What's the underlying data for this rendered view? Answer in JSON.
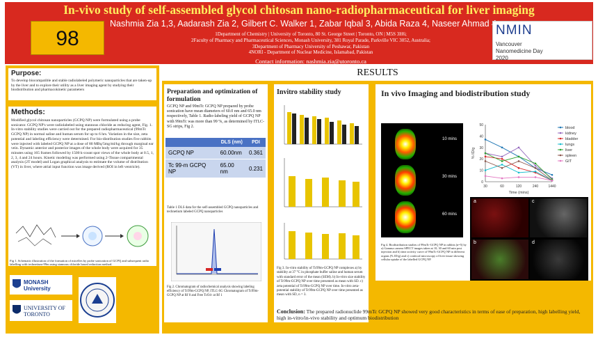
{
  "header": {
    "title": "In-vivo study of self-assembled glycol chitosan nano-radiopharmaceutical for liver imaging",
    "poster_number": "98",
    "authors": "Nashmia Zia 1,3, Aadarash Zia 2, Gilbert C. Walker 1, Zabar Iqbal 3, Abida Raza 4, Naseer Ahmad 4",
    "affiliations": [
      "1Department of Chemistry | University of Toronto, 80 St. George Street | Toronto, ON | M5S 3H6;",
      "2Faculty of Pharmacy and Pharmaceutical Sciences, Monash University, 381 Royal Parade, Parkville VIC 3052, Australia;",
      "3Department of Pharmacy University of Peshawar, Pakistan",
      "4NORI - Department of Nuclear Medicine, Islamabad, Pakistan"
    ],
    "contact": "Contact information: nashmia.zia@utoronto.ca",
    "conference_logo": "NMIN",
    "conference_name": "Vancouver Nanomedicine Day 2020"
  },
  "purpose": {
    "heading": "Purpose:",
    "text": "To develop biocompatible and stable radiolabeled polymeric nanoparticles that are taken-up by the liver and to explore their utility as a liver imaging agent by studying their biodistribution and pharmacokinetic parameters"
  },
  "methods": {
    "heading": "Methods:",
    "text": "Modified glycol chitosan nanoparticles (GCPQ NP) were formulated using a probe sonicator. GCPQ NP's were radiolabeled using stannous chloride as reducing agent, Fig. 1. In-vitro stability studies were carried out for the prepared radiopharmaceutical (99mTc GCPQ NP) in normal saline and human serum for up to 6 hrs. Variation in the size, zeta potential and labeling efficiency were determined. For bio-distribution studies five rabbits were injected with labeled GCPQ NP at a dose of 80 MBq/5mg/ml/kg through marginal ear vein. Dynamic anterior and posterior images of the whole body were acquired for 35 minutes using 165 frames followed by 1500 k-count spot views of the whole body at 0.5, 1, 2, 3, 4 and 24 hours. Kinetic modeling was performed using 2-Tissue compartmental analysis (2T model) and Logan graphical analysis to estimate the volume of distribution (VT) in liver, where atrial input function was image derived (ROI in left ventricle).",
    "fig1_caption": "Fig 1. Schematic illustration of the formation of micelles by probe sonication of GCPQ and subsequent radio labelling with technetium-99m using stannous chloride based reduction method."
  },
  "logos": {
    "monash": "MONASH University",
    "toronto": "UNIVERSITY OF TORONTO"
  },
  "results": {
    "heading": "RESULTS"
  },
  "prep": {
    "heading": "Preparation and optimization of formulation",
    "text": "GCPQ NP and 99mTc GCPQ NP prepared by probe sonication have mean diameters of 60.0 nm and 65.0 nm respectively, Table 1. Radio-labeling yield of GCPQ NP with 99mTc was more than 99 %, as determined by ITLC-SG strips, Fig 2.",
    "table": {
      "headers": [
        "",
        "DLS (nm)",
        "PDI"
      ],
      "rows": [
        [
          "GCPQ NP",
          "60.00nm",
          "0.361"
        ],
        [
          "Tc 99-m GCPQ NP",
          "65.00 nm",
          "0.231"
        ]
      ]
    },
    "table_caption": "Table 1 DLS data for the self-assembled GCPQ nanoparticles and technetium labeled GCPQ nanoparticles",
    "fig2_caption": "Fig 2. Chromatogram of radiochemical analysis showing labeling efficiency of Tc99m-GCPQ NP, ITLC-SG Chromatogram of Tc99m-GCPQ NP at Rf 0 and Free TcO4- at Rf 1"
  },
  "stability": {
    "heading": "Invitro stability study",
    "caption": "Fig 3. In-vitro stability of Tc99m-GCPQ NP complexes a) by stability at 37 °C in phosphate buffer saline and human serum with standard error of the mean (SEM). b) In-vitro size stability of Tc99m-GCPQ NP over time presented as mean with SD. c) zeta potential of Tc99m-GCPQ NP over time. In-vitro zeta-potential stability of Tc99m-GCPQ NP over time presented as mean with SD, n = 3."
  },
  "invivo": {
    "heading": "In vivo Imaging and biodistribution study",
    "time_labels": [
      "10 mins",
      "30 mins",
      "60 mins"
    ],
    "legend": [
      "blood",
      "kidney",
      "bladder",
      "lungs",
      "liver",
      "spleen",
      "GIT"
    ],
    "legend_colors": [
      "#1f77b4",
      "#9467bd",
      "#d62728",
      "#17becf",
      "#2ca02c",
      "#8c564b",
      "#e377c2"
    ],
    "x_ticks": [
      "30",
      "60",
      "120",
      "240",
      "1440"
    ],
    "x_label": "Time (mins)",
    "y_label": "% ID/g",
    "y_ticks": [
      "0",
      "5",
      "10",
      "15",
      "20",
      "25",
      "30",
      "35",
      "40",
      "45",
      "50"
    ],
    "panel_letters": [
      "a",
      "b",
      "c",
      "d"
    ],
    "caption": "Fig 4. Biodistribution studies of 99mTc-GCPQ NP in rabbits (n=5) by a) Gamma camera SPECT images taken at 10, 30 and 60 min post injection and b) time activity curve of 99mTc-GCPQ NP in different organs (% ID/g) and c) confocal microscopy of liver tissue showing cellular uptake of the labelled GCPQ NP."
  },
  "conclusion": {
    "heading": "Conclusion:",
    "text": "The prepared radionuclide 99mTc GCPQ NP showed very good characteristics in terms of ease of preparation, high labelling yield, high in-vitro/in-vivo stability and optimum biodistribution"
  },
  "chart_data": {
    "type": "line",
    "x": [
      30,
      60,
      120,
      240,
      1440
    ],
    "xlabel": "Time (mins)",
    "ylabel": "% ID/g",
    "ylim": [
      0,
      50
    ],
    "series": [
      {
        "name": "blood",
        "values": [
          37,
          30,
          22,
          12,
          6
        ]
      },
      {
        "name": "kidney",
        "values": [
          25,
          22,
          30,
          14,
          3
        ]
      },
      {
        "name": "bladder",
        "values": [
          22,
          20,
          12,
          8,
          1
        ]
      },
      {
        "name": "lungs",
        "values": [
          10,
          15,
          8,
          9,
          1
        ]
      },
      {
        "name": "liver",
        "values": [
          25,
          18,
          22,
          16,
          2
        ]
      },
      {
        "name": "spleen",
        "values": [
          18,
          12,
          18,
          12,
          1
        ]
      },
      {
        "name": "GIT",
        "values": [
          5,
          3,
          4,
          4,
          1
        ]
      }
    ]
  }
}
